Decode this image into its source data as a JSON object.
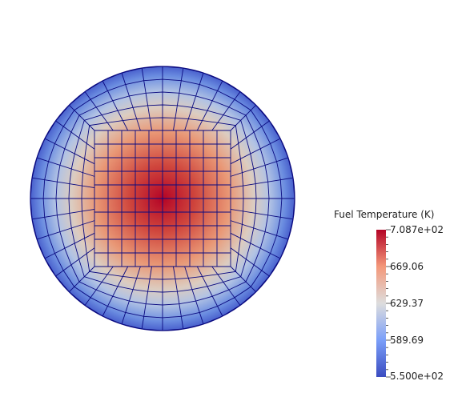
{
  "legend": {
    "title": "Fuel Temperature (K)",
    "max_label": "7.087e+02",
    "min_label": "5.500e+02",
    "ticks": [
      {
        "value": 669.06,
        "label": "669.06"
      },
      {
        "value": 629.37,
        "label": "629.37"
      },
      {
        "value": 589.69,
        "label": "589.69"
      }
    ],
    "range": [
      550.0,
      708.7
    ]
  },
  "colormap": {
    "low": "#3b4cc0",
    "mid": "#dddddd",
    "high": "#b40426"
  },
  "mesh": {
    "edge_color": "#0a0a80"
  }
}
